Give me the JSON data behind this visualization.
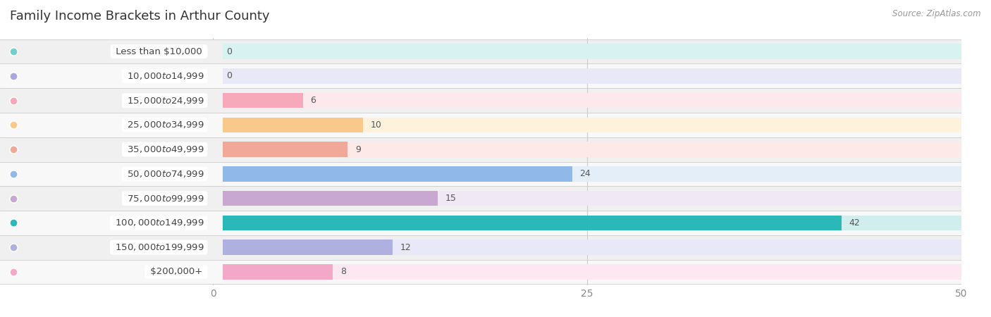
{
  "title": "Family Income Brackets in Arthur County",
  "source": "Source: ZipAtlas.com",
  "categories": [
    "Less than $10,000",
    "$10,000 to $14,999",
    "$15,000 to $24,999",
    "$25,000 to $34,999",
    "$35,000 to $49,999",
    "$50,000 to $74,999",
    "$75,000 to $99,999",
    "$100,000 to $149,999",
    "$150,000 to $199,999",
    "$200,000+"
  ],
  "values": [
    0,
    0,
    6,
    10,
    9,
    24,
    15,
    42,
    12,
    8
  ],
  "bar_colors": [
    "#72ceca",
    "#a8a8da",
    "#f7a8ba",
    "#f8c98a",
    "#f2a898",
    "#90b8e8",
    "#c8a8d0",
    "#2ab8b8",
    "#b0b0e0",
    "#f4a8c8"
  ],
  "bar_bg_colors": [
    "#d8f2f2",
    "#e8e8f6",
    "#fde8ee",
    "#fef2dc",
    "#fdeae8",
    "#e4eef8",
    "#f0e8f4",
    "#d0eeee",
    "#e8e8f8",
    "#fde8f2"
  ],
  "row_colors": [
    "#f0f0f0",
    "#f8f8f8",
    "#f0f0f0",
    "#f8f8f8",
    "#f0f0f0",
    "#f8f8f8",
    "#f0f0f0",
    "#f8f8f8",
    "#f0f0f0",
    "#f8f8f8"
  ],
  "xlim": [
    0,
    50
  ],
  "xticks": [
    0,
    25,
    50
  ],
  "title_fontsize": 13,
  "label_fontsize": 9.5,
  "value_fontsize": 9
}
